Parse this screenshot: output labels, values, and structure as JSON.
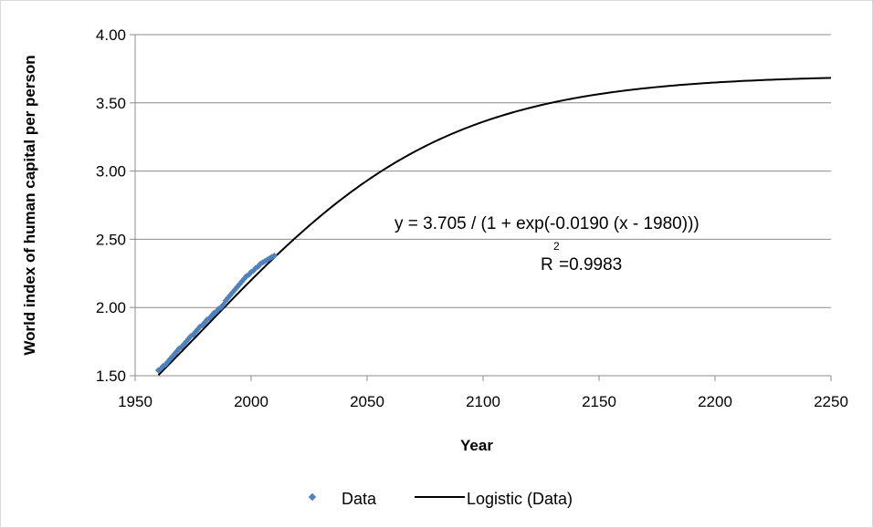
{
  "chart_data": {
    "type": "scatter",
    "xlabel": "Year",
    "ylabel": "World index of human capital per person",
    "xlim": [
      1950,
      2250
    ],
    "ylim": [
      1.5,
      4.0
    ],
    "x_ticks": [
      "1950",
      "2000",
      "2050",
      "2100",
      "2150",
      "2200",
      "2250"
    ],
    "y_ticks": [
      "1.50",
      "2.00",
      "2.50",
      "3.00",
      "3.50",
      "4.00"
    ],
    "grid": "horizontal",
    "legend_position": "bottom",
    "series": [
      {
        "name": "Data",
        "kind": "scatter",
        "color": "#4f81bd",
        "x": [
          1960,
          1961,
          1962,
          1963,
          1964,
          1965,
          1966,
          1967,
          1968,
          1969,
          1970,
          1971,
          1972,
          1973,
          1974,
          1975,
          1976,
          1977,
          1978,
          1979,
          1980,
          1981,
          1982,
          1983,
          1984,
          1985,
          1986,
          1987,
          1988,
          1989,
          1990,
          1991,
          1992,
          1993,
          1994,
          1995,
          1996,
          1997,
          1998,
          1999,
          2000,
          2001,
          2002,
          2003,
          2004,
          2005,
          2006,
          2007,
          2008,
          2009,
          2010
        ],
        "y": [
          1.54,
          1.55,
          1.57,
          1.58,
          1.6,
          1.62,
          1.64,
          1.66,
          1.68,
          1.7,
          1.71,
          1.73,
          1.75,
          1.77,
          1.79,
          1.8,
          1.82,
          1.84,
          1.86,
          1.87,
          1.89,
          1.91,
          1.92,
          1.94,
          1.96,
          1.97,
          1.99,
          2.0,
          2.02,
          2.05,
          2.07,
          2.09,
          2.11,
          2.13,
          2.15,
          2.17,
          2.19,
          2.21,
          2.23,
          2.24,
          2.26,
          2.27,
          2.29,
          2.3,
          2.32,
          2.33,
          2.34,
          2.35,
          2.36,
          2.37,
          2.38
        ]
      },
      {
        "name": "Logistic (Data)",
        "kind": "line",
        "color": "#000000",
        "function": {
          "L": 3.705,
          "k": 0.019,
          "x0": 1980
        },
        "x_range": [
          1960,
          2250
        ]
      }
    ],
    "annotations": [
      "y = 3.705 / (1 + exp(-0.0190 (x - 1980)))",
      "R",
      "2",
      "=0.9983"
    ],
    "legend": [
      "Data",
      "Logistic (Data)"
    ]
  }
}
